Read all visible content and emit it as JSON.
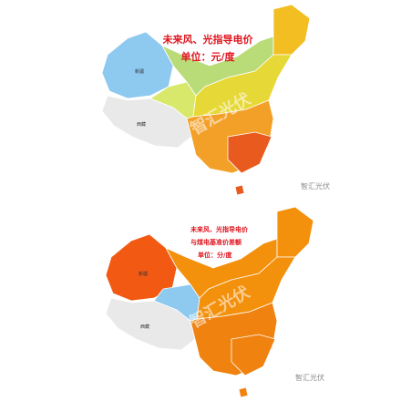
{
  "maps": [
    {
      "title": "未来风、光指导电价",
      "unit": "单位：元/度",
      "watermark": "智汇光伏",
      "logo": "智汇光伏",
      "regions": [
        "新疆",
        "西藏"
      ]
    },
    {
      "title": "未来风、光指导电价",
      "subtitle": "与煤电基准价差额",
      "unit": "单位：分/度",
      "watermark": "智汇光伏",
      "logo": "智汇光伏",
      "regions": [
        "新疆",
        "西藏"
      ]
    }
  ]
}
